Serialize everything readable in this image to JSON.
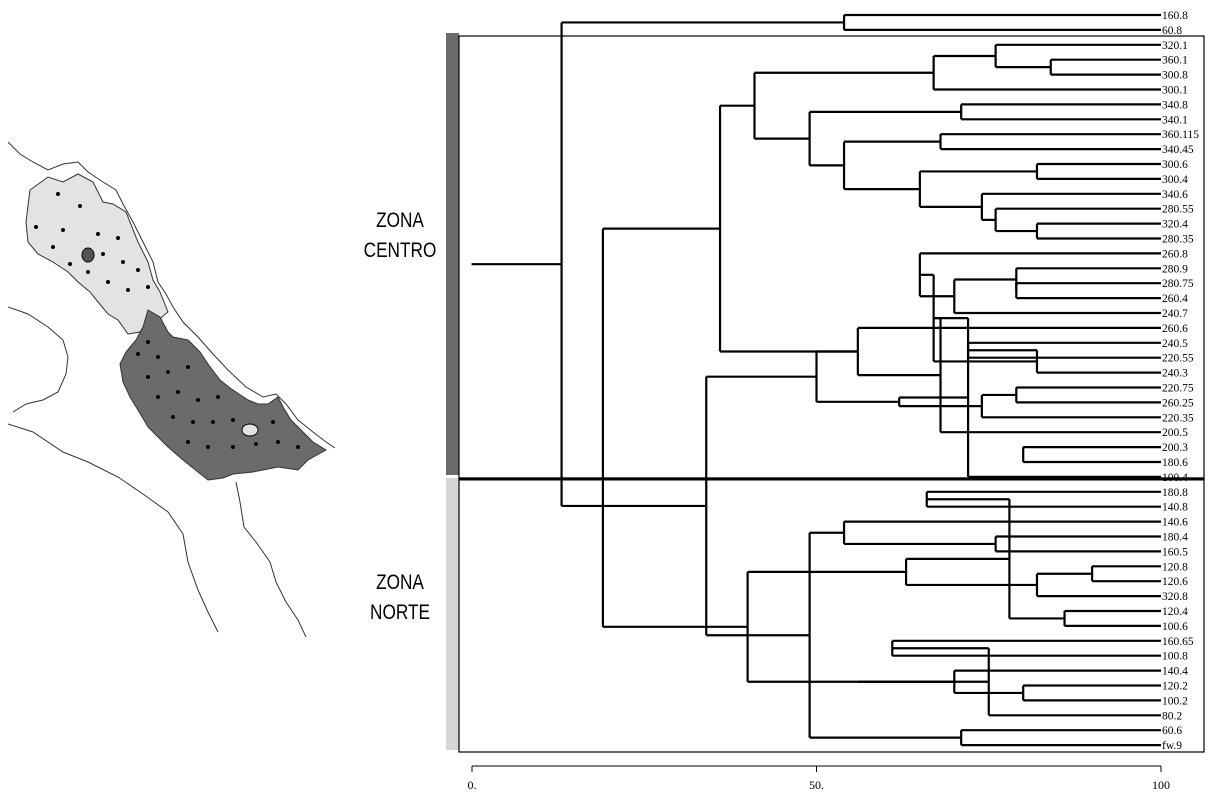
{
  "zones": {
    "centro": {
      "line1": "ZONA",
      "line2": "CENTRO",
      "color": "#6b6b6b"
    },
    "norte": {
      "line1": "ZONA",
      "line2": "NORTE",
      "color": "#d6d6d6"
    }
  },
  "map": {
    "land_color": "#ffffff",
    "north_zone_color": "#e3e3e3",
    "central_zone_color": "#6b6b6b",
    "coast_color": "#333333"
  },
  "axis": {
    "ticks": [
      {
        "value": 0,
        "label": "0."
      },
      {
        "value": 50,
        "label": "50."
      },
      {
        "value": 100,
        "label": "100"
      }
    ]
  },
  "dendrogram": {
    "leaves": [
      "160.8",
      "60.8",
      "320.1",
      "360.1",
      "300.8",
      "300.1",
      "340.8",
      "340.1",
      "360.115",
      "340.45",
      "300.6",
      "300.4",
      "340.6",
      "280.55",
      "320.4",
      "280.35",
      "260.8",
      "280.9",
      "280.75",
      "260.4",
      "240.7",
      "260.6",
      "240.5",
      "220.55",
      "240.3",
      "220.75",
      "260.25",
      "220.35",
      "200.5",
      "200.3",
      "180.6",
      "100.4",
      "180.8",
      "140.8",
      "140.6",
      "180.4",
      "160.5",
      "120.8",
      "120.6",
      "320.8",
      "120.4",
      "100.6",
      "160.65",
      "100.8",
      "140.4",
      "120.2",
      "100.2",
      "80.2",
      "60.6",
      "fw.9"
    ],
    "merges": [
      [
        0,
        1,
        54
      ],
      [
        3,
        4,
        84
      ],
      [
        2,
        51,
        76
      ],
      [
        52,
        5,
        67
      ],
      [
        6,
        7,
        71
      ],
      [
        8,
        9,
        68
      ],
      [
        10,
        11,
        82
      ],
      [
        14,
        15,
        82
      ],
      [
        13,
        57,
        76
      ],
      [
        12,
        58,
        74
      ],
      [
        56,
        59,
        65
      ],
      [
        55,
        60,
        54
      ],
      [
        54,
        61,
        49
      ],
      [
        53,
        62,
        41
      ],
      [
        18,
        19,
        79
      ],
      [
        17,
        64,
        79
      ],
      [
        20,
        65,
        70
      ],
      [
        16,
        66,
        65
      ],
      [
        22,
        23,
        72
      ],
      [
        25,
        26,
        79
      ],
      [
        24,
        68,
        82
      ],
      [
        69,
        27,
        74
      ],
      [
        67,
        70,
        67
      ],
      [
        29,
        30,
        80
      ],
      [
        72,
        31,
        72
      ],
      [
        28,
        72,
        68
      ],
      [
        71,
        74,
        62
      ],
      [
        21,
        75,
        56
      ],
      [
        76,
        77,
        50
      ],
      [
        63,
        77,
        36
      ],
      [
        32,
        33,
        66
      ],
      [
        37,
        38,
        90
      ],
      [
        40,
        41,
        86
      ],
      [
        39,
        81,
        82
      ],
      [
        80,
        82,
        78
      ],
      [
        35,
        36,
        76
      ],
      [
        84,
        83,
        63
      ],
      [
        34,
        85,
        54
      ],
      [
        42,
        43,
        61
      ],
      [
        45,
        46,
        80
      ],
      [
        88,
        47,
        75
      ],
      [
        44,
        89,
        70
      ],
      [
        48,
        49,
        71
      ],
      [
        90,
        91,
        56
      ],
      [
        87,
        92,
        49
      ],
      [
        86,
        93,
        40
      ],
      [
        78,
        94,
        34
      ],
      [
        79,
        95,
        19
      ],
      [
        50,
        96,
        13
      ]
    ]
  }
}
